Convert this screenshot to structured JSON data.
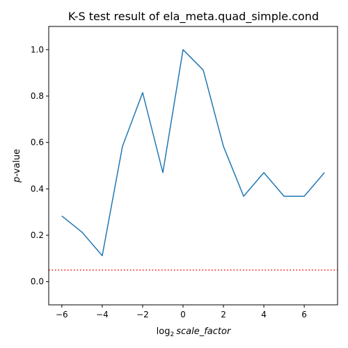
{
  "chart_data": {
    "type": "line",
    "title": "K-S test result of ela_meta.quad_simple.cond",
    "xlabel_prefix": "log",
    "xlabel_sub": "2",
    "xlabel_var": "scale_factor",
    "ylabel_var": "p",
    "ylabel_suffix": "-value",
    "xlim": [
      -6.65,
      7.65
    ],
    "ylim": [
      -0.1,
      1.1
    ],
    "xticks": [
      -6,
      -4,
      -2,
      0,
      2,
      4,
      6
    ],
    "xtick_labels": [
      "−6",
      "−4",
      "−2",
      "0",
      "2",
      "4",
      "6"
    ],
    "yticks": [
      0.0,
      0.2,
      0.4,
      0.6,
      0.8,
      1.0
    ],
    "ytick_labels": [
      "0.0",
      "0.2",
      "0.4",
      "0.6",
      "0.8",
      "1.0"
    ],
    "grid": false,
    "series": [
      {
        "color": "#1f77b4",
        "x": [
          -6,
          -5,
          -4,
          -3,
          -2,
          -1,
          0,
          1,
          2,
          3,
          4,
          5,
          6,
          7
        ],
        "y": [
          0.283,
          0.213,
          0.112,
          0.583,
          0.815,
          0.47,
          1.0,
          0.912,
          0.583,
          0.368,
          0.47,
          0.368,
          0.368,
          0.47
        ]
      }
    ],
    "reference_line": {
      "y": 0.05,
      "color": "#ff0000",
      "style": "dotted"
    }
  }
}
